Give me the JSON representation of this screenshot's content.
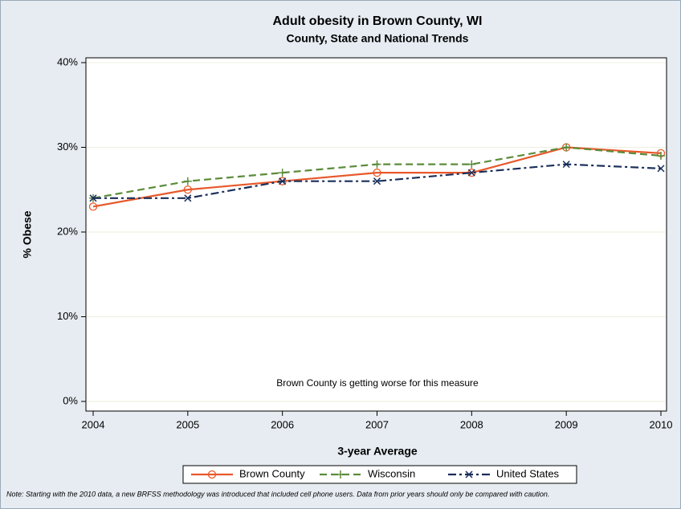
{
  "chart_data": {
    "type": "line",
    "title": "Adult obesity in Brown County, WI",
    "subtitle": "County, State and National Trends",
    "y_label": "% Obese",
    "x_label": "3-year Average",
    "annotation": "Brown County is getting worse for this measure",
    "note": "Note: Starting with the 2010 data, a new BRFSS methodology was introduced that included cell phone users.  Data from prior years should only be compared with caution.",
    "x": [
      2004,
      2005,
      2006,
      2007,
      2008,
      2009,
      2010
    ],
    "xlim": [
      2004,
      2010
    ],
    "xticks": [
      2004,
      2005,
      2006,
      2007,
      2008,
      2009,
      2010
    ],
    "ylim": [
      0,
      40
    ],
    "yticks": [
      {
        "value": 0,
        "label": "0%"
      },
      {
        "value": 10,
        "label": "10%"
      },
      {
        "value": 20,
        "label": "20%"
      },
      {
        "value": 30,
        "label": "30%"
      },
      {
        "value": 40,
        "label": "40%"
      }
    ],
    "grid": true,
    "legend": "bottom",
    "series": [
      {
        "name": "Brown County",
        "color": "#e8582a",
        "values": [
          23,
          25,
          26,
          27,
          27,
          30,
          29.3
        ]
      },
      {
        "name": "Wisconsin",
        "color": "#5b8c3a",
        "values": [
          24,
          26,
          27,
          28,
          28,
          30,
          29
        ]
      },
      {
        "name": "United States",
        "color": "#1a2e5a",
        "values": [
          24,
          24,
          26,
          26,
          27,
          28,
          27.5
        ]
      }
    ]
  }
}
